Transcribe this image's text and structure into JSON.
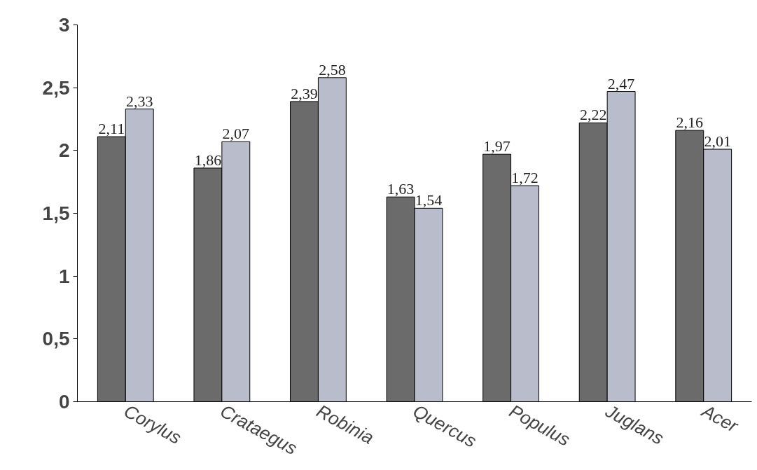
{
  "chart_data": {
    "type": "bar",
    "categories": [
      "Corylus",
      "Crataegus",
      "Robinia",
      "Quercus",
      "Populus",
      "Juglans",
      "Acer"
    ],
    "series": [
      {
        "color": "#6b6b6b",
        "values": [
          2.11,
          1.86,
          2.39,
          1.63,
          1.97,
          2.22,
          2.16
        ],
        "value_labels": [
          "2,11",
          "1,86",
          "2,39",
          "1,63",
          "1,97",
          "2,22",
          "2,16"
        ]
      },
      {
        "color": "#b8bccb",
        "values": [
          2.33,
          2.07,
          2.58,
          1.54,
          1.72,
          2.47,
          2.01
        ],
        "value_labels": [
          "2,33",
          "2,07",
          "2,58",
          "1,54",
          "1,72",
          "2,47",
          "2,01"
        ]
      }
    ],
    "ylim": [
      0,
      3
    ],
    "yticks": [
      0,
      {
        "value": 0.5,
        "label": "0,5"
      },
      1,
      {
        "value": 1.5,
        "label": "1,5"
      },
      2,
      {
        "value": 2.5,
        "label": "2,5"
      },
      3
    ]
  }
}
